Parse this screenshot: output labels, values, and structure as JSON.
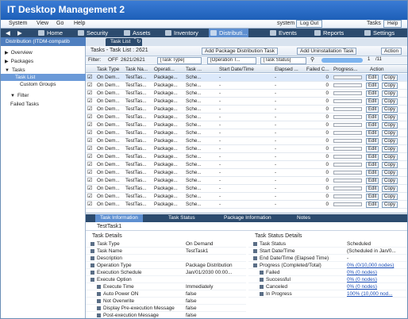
{
  "app": {
    "title": "IT Desktop Management 2"
  },
  "menu": {
    "items": [
      "System",
      "View",
      "Go",
      "Help"
    ],
    "user_label": "system",
    "logout_label": "Log Out",
    "tasks_label": "Tasks",
    "help_label": "Help"
  },
  "nav": {
    "items": [
      "Home",
      "Security",
      "Assets",
      "Inventory",
      "Distributi...",
      "Events",
      "Reports",
      "Settings"
    ],
    "active": "Distributi..."
  },
  "left": {
    "header": "Distribution (ITDM-compatib",
    "items": [
      "Overview",
      "Packages",
      "Tasks",
      "Task List",
      "Custom Groups",
      "Filter",
      "Failed Tasks"
    ]
  },
  "main": {
    "tab": "Task List",
    "title": "Tasks - Task List : 2621",
    "buttons": [
      "Add Package Distribution Task",
      "Add Uninstallation Task",
      "Action"
    ],
    "filter": {
      "label": "Filter:",
      "off": "OFF",
      "count": "2621/2621",
      "selects": [
        "[Task Type]",
        "[Operation T...",
        "[Task Status]"
      ],
      "page": "1",
      "of": "/11"
    },
    "columns": [
      "Task Type",
      "Task Na...",
      "Operati...",
      "Task ...",
      "Start Date/Time",
      "Elapsed ...",
      "Failed C...",
      "Progress...",
      "Action"
    ],
    "rows": [
      [
        "On Dem...",
        "TestTas...",
        "Package...",
        "Sche...",
        "-",
        "-",
        "0"
      ],
      [
        "On Dem...",
        "TestTas...",
        "Package...",
        "Sche...",
        "-",
        "-",
        "0"
      ],
      [
        "On Dem...",
        "TestTas...",
        "Package...",
        "Sche...",
        "-",
        "-",
        "0"
      ],
      [
        "On Dem...",
        "TestTas...",
        "Package...",
        "Sche...",
        "-",
        "-",
        "0"
      ],
      [
        "On Dem...",
        "TestTas...",
        "Package...",
        "Sche...",
        "-",
        "-",
        "0"
      ],
      [
        "On Dem...",
        "TestTas...",
        "Package...",
        "Sche...",
        "-",
        "-",
        "0"
      ],
      [
        "On Dem...",
        "TestTas...",
        "Package...",
        "Sche...",
        "-",
        "-",
        "0"
      ],
      [
        "On Dem...",
        "TestTas...",
        "Package...",
        "Sche...",
        "-",
        "-",
        "0"
      ],
      [
        "On Dem...",
        "TestTas...",
        "Package...",
        "Sche...",
        "-",
        "-",
        "0"
      ],
      [
        "On Dem...",
        "TestTas...",
        "Package...",
        "Sche...",
        "-",
        "-",
        "0"
      ],
      [
        "On Dem...",
        "TestTas...",
        "Package...",
        "Sche...",
        "-",
        "-",
        "0"
      ],
      [
        "On Dem...",
        "TestTas...",
        "Package...",
        "Sche...",
        "-",
        "-",
        "0"
      ],
      [
        "On Dem...",
        "TestTas...",
        "Package...",
        "Sche...",
        "-",
        "-",
        "0"
      ],
      [
        "On Dem...",
        "TestTas...",
        "Package...",
        "Sche...",
        "-",
        "-",
        "0"
      ],
      [
        "On Dem...",
        "TestTas...",
        "Package...",
        "Sche...",
        "-",
        "-",
        "0"
      ],
      [
        "On Dem...",
        "TestTas...",
        "Package...",
        "Sche...",
        "-",
        "-",
        "0"
      ],
      [
        "On Dem...",
        "TestTas...",
        "Package...",
        "Sche...",
        "-",
        "-",
        "0"
      ]
    ],
    "action_edit": "Edit",
    "action_copy": "Copy"
  },
  "details": {
    "tabs": [
      "Task Information",
      "Task Status",
      "Package Information",
      "Notes"
    ],
    "task_name": "TestTask1",
    "left_title": "Task Details",
    "left_rows": [
      [
        "Task Type",
        "On Demand"
      ],
      [
        "Task Name",
        "TestTask1"
      ],
      [
        "Description",
        ""
      ],
      [
        "Operation Type",
        "Package Distribution"
      ],
      [
        "Execution Schedule",
        "Jan/01/2030 00:00..."
      ],
      [
        "Execute Option",
        ""
      ],
      [
        "Execute Time",
        "Immediately"
      ],
      [
        "Auto Power ON",
        "false"
      ],
      [
        "Not Overwrite",
        "false"
      ],
      [
        "Display Pre-execution Message",
        "false"
      ],
      [
        "Post-execution Message",
        "false"
      ]
    ],
    "right_title": "Task Status Details",
    "right_rows": [
      [
        "Task Status",
        "Scheduled"
      ],
      [
        "Start Date/Time",
        "(Scheduled in Jan/0..."
      ],
      [
        "End Date/Time (Elapsed Time)",
        "-"
      ],
      [
        "Progress (Completed/Total)",
        "0% (0/10,000 nodes)"
      ],
      [
        "Failed",
        "0% (0 nodes)"
      ],
      [
        "Successful",
        "0% (0 nodes)"
      ],
      [
        "Canceled",
        "0% (0 nodes)"
      ],
      [
        "In Progress",
        "100% (10,000 nod..."
      ]
    ]
  }
}
